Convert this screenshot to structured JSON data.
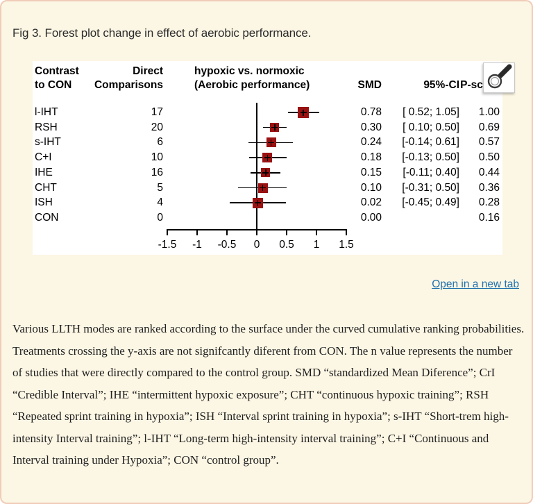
{
  "figure_viewer": {
    "title": "Fig 3. Forest plot change in effect of aerobic performance.",
    "open_in_new_tab": "Open in a new tab",
    "caption": "Various LLTH modes are ranked according to the surface under the curved cumulative ranking probabilities. Treatments crossing the y-axis are not signifcantly diferent from CON. The n value represents the number of studies that were directly compared to the control group. SMD “standardized Mean Diference”; CrI “Credible Interval”; IHE “intermittent hypoxic exposure”; CHT “continuous hypoxic training”; RSH “Repeated sprint training in hypoxia”; ISH “Interval sprint training in hypoxia”; s-IHT “Short-trem high-intensity Interval training”; l-IHT “Long-term high-intensity interval training”; C+I “Continuous and Interval training under Hypoxia”; CON “control group”."
  },
  "colors": {
    "card_bg": "#fcf6e4",
    "card_border": "#f0ccb8",
    "link_blue": "#2170ad",
    "marker_red": "#991111",
    "plot_bg": "#ffffff",
    "plot_text": "#000000"
  },
  "icons": {
    "zoom_cursor": "magnifier-cursor"
  },
  "chart_data": {
    "type": "forest",
    "title": "hypoxic vs. normoxic (Aerobic performance)",
    "headers": {
      "col_contrast": [
        "Contrast",
        "to CON"
      ],
      "col_direct": [
        "Direct",
        "Comparisons"
      ],
      "col_plot": [
        "hypoxic vs. normoxic",
        "(Aerobic performance)"
      ],
      "col_smd": "SMD",
      "col_ci": "95%-CI",
      "col_pscore": "P-score"
    },
    "axis": {
      "xlim": [
        -1.5,
        1.5
      ],
      "tick_values": [
        -1.5,
        -1,
        -0.5,
        0,
        0.5,
        1,
        1.5
      ],
      "tick_labels": [
        "-1.5",
        "-1",
        "-0.5",
        "0",
        "0.5",
        "1",
        "1.5"
      ],
      "zero_reference_line": true
    },
    "rows": [
      {
        "label": "l-IHT",
        "n": "17",
        "smd": 0.78,
        "ci_low": 0.52,
        "ci_high": 1.05,
        "smd_text": "0.78",
        "ci_text": "[ 0.52; 1.05]",
        "pscore": "1.00",
        "marker": 16
      },
      {
        "label": "RSH",
        "n": "20",
        "smd": 0.3,
        "ci_low": 0.1,
        "ci_high": 0.5,
        "smd_text": "0.30",
        "ci_text": "[ 0.10; 0.50]",
        "pscore": "0.69",
        "marker": 13
      },
      {
        "label": "s-IHT",
        "n": "6",
        "smd": 0.24,
        "ci_low": -0.14,
        "ci_high": 0.61,
        "smd_text": "0.24",
        "ci_text": "[-0.14; 0.61]",
        "pscore": "0.57",
        "marker": 14
      },
      {
        "label": "C+I",
        "n": "10",
        "smd": 0.18,
        "ci_low": -0.13,
        "ci_high": 0.5,
        "smd_text": "0.18",
        "ci_text": "[-0.13; 0.50]",
        "pscore": "0.50",
        "marker": 14
      },
      {
        "label": "IHE",
        "n": "16",
        "smd": 0.15,
        "ci_low": -0.11,
        "ci_high": 0.4,
        "smd_text": "0.15",
        "ci_text": "[-0.11; 0.40]",
        "pscore": "0.44",
        "marker": 13
      },
      {
        "label": "CHT",
        "n": "5",
        "smd": 0.1,
        "ci_low": -0.31,
        "ci_high": 0.5,
        "smd_text": "0.10",
        "ci_text": "[-0.31; 0.50]",
        "pscore": "0.36",
        "marker": 14
      },
      {
        "label": "ISH",
        "n": "4",
        "smd": 0.02,
        "ci_low": -0.45,
        "ci_high": 0.49,
        "smd_text": "0.02",
        "ci_text": "[-0.45; 0.49]",
        "pscore": "0.28",
        "marker": 15
      },
      {
        "label": "CON",
        "n": "0",
        "smd": 0.0,
        "ci_low": null,
        "ci_high": null,
        "smd_text": "0.00",
        "ci_text": "",
        "pscore": "0.16",
        "marker": 0
      }
    ]
  }
}
